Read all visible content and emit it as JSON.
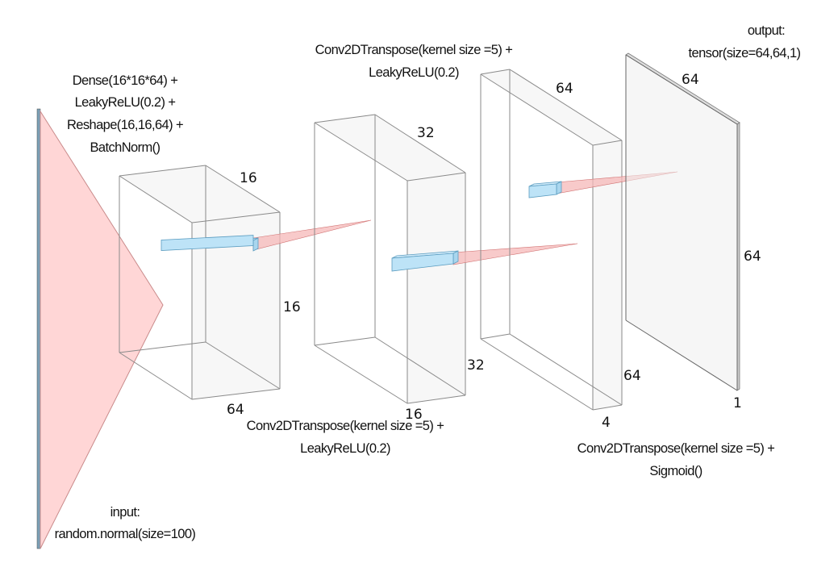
{
  "input": {
    "line1": "input:",
    "line2": "random.normal(size=100)"
  },
  "dense": {
    "line1": "Dense(16*16*64) +",
    "line2": "LeakyReLU(0.2) +",
    "line3": "Reshape(16,16,64) +",
    "line4": "BatchNorm()"
  },
  "block1": {
    "dim_top": "16",
    "dim_side": "16",
    "dim_bottom": "64"
  },
  "conv1": {
    "line1": "Conv2DTranspose(kernel size =5) +",
    "line2": "LeakyReLU(0.2)"
  },
  "block2": {
    "dim_top": "32",
    "dim_side": "32",
    "dim_bottom": "16"
  },
  "conv2": {
    "line1": "Conv2DTranspose(kernel size =5) +",
    "line2": "LeakyReLU(0.2)"
  },
  "block3": {
    "dim_top": "64",
    "dim_side": "64",
    "dim_bottom": "4"
  },
  "conv3": {
    "line1": "Conv2DTranspose(kernel size =5) +",
    "line2": "Sigmoid()"
  },
  "output": {
    "line1": "output:",
    "line2": "tensor(size=64,64,1)",
    "dim_top": "64",
    "dim_side": "64",
    "dim_bottom": "1"
  },
  "colors": {
    "input_fill": "#ffd6d6",
    "kernel_fill": "#bde3f7",
    "cone_fill": "#f5b8b8",
    "edge": "#8a8a8a"
  }
}
